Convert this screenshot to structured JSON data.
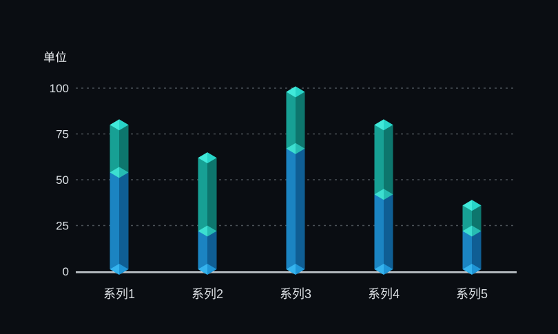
{
  "chart_data": {
    "type": "bar",
    "variant": "3d-stacked-columns",
    "title": "",
    "ylabel": "单位",
    "xlabel": "",
    "categories": [
      "系列1",
      "系列2",
      "系列3",
      "系列4",
      "系列5"
    ],
    "stacks": {
      "bottom_values": [
        54,
        22,
        67,
        42,
        22
      ],
      "top_values": [
        26,
        40,
        31,
        38,
        14
      ]
    },
    "totals": [
      80,
      62,
      98,
      80,
      36
    ],
    "yticks": [
      100,
      75,
      50,
      25,
      0
    ],
    "ylim": [
      0,
      100
    ],
    "grid": "dashed-horizontal",
    "legend_position": "none"
  },
  "colors": {
    "background": "#0a0d12",
    "axis_line": "#ccd1d6",
    "axis_line_shadow": "#585e64",
    "grid_line": "#4b5157",
    "unit_text": "#eaedf0",
    "tick_text": "#dde2e6",
    "category_text": "#dbdfe3",
    "bottom_left_face": "#1b84c2",
    "bottom_right_face": "#0f5e94",
    "top_left_face": "#17a094",
    "top_right_face": "#0d766d",
    "cap_left": "#40e9da",
    "cap_right": "#28d4c8",
    "joint_left": "#3cdfd0",
    "joint_right": "#26bcb2",
    "base_left": "#35b4ee",
    "base_right": "#1f95d6"
  }
}
